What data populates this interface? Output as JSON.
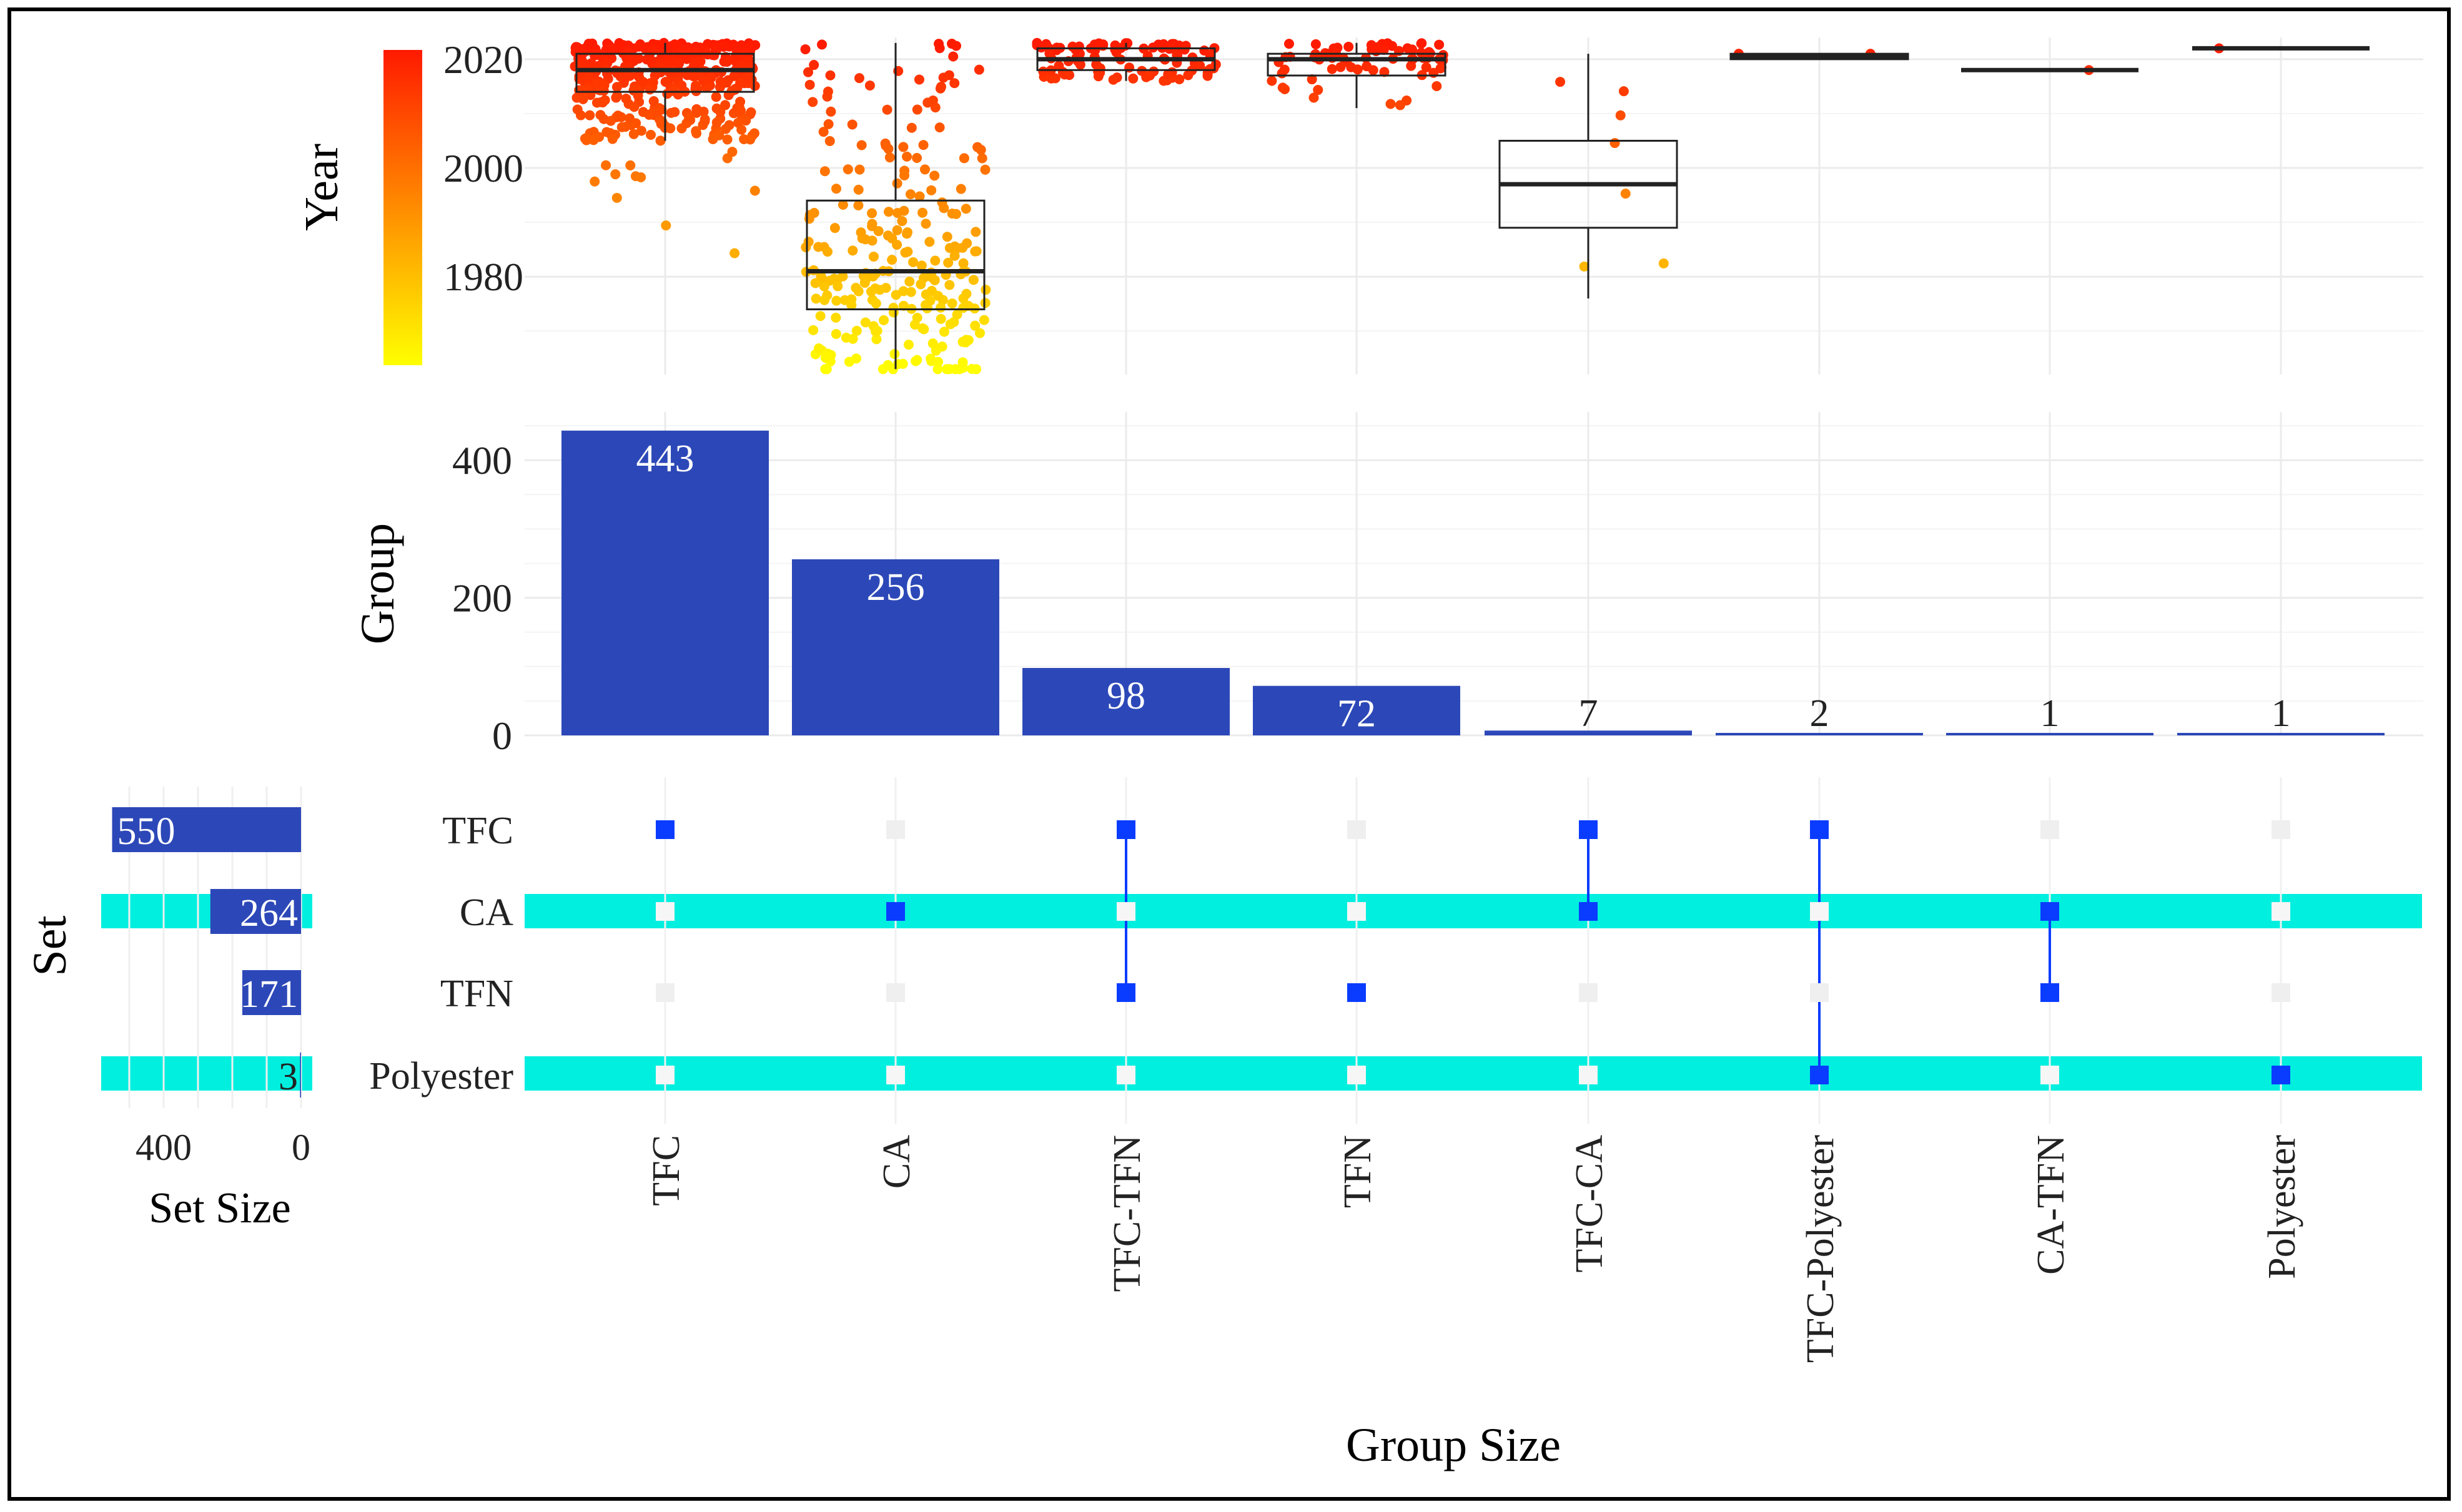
{
  "chart_data": {
    "type": "upset",
    "groups": [
      "TFC",
      "CA",
      "TFC-TFN",
      "TFN",
      "TFC-CA",
      "TFC-Polyester",
      "CA-TFN",
      "Polyester"
    ],
    "sets": [
      "TFC",
      "CA",
      "TFN",
      "Polyester"
    ],
    "membership": [
      [
        "TFC"
      ],
      [
        "CA"
      ],
      [
        "TFC",
        "TFN"
      ],
      [
        "TFN"
      ],
      [
        "TFC",
        "CA"
      ],
      [
        "TFC",
        "Polyester"
      ],
      [
        "CA",
        "TFN"
      ],
      [
        "Polyester"
      ]
    ],
    "group_sizes": [
      443,
      256,
      98,
      72,
      7,
      2,
      1,
      1
    ],
    "group_size_labels": [
      "443",
      "256",
      "98",
      "72",
      "7",
      "2",
      "1",
      "1"
    ],
    "set_sizes": [
      550,
      264,
      171,
      3
    ],
    "set_size_labels": [
      "550",
      "264",
      "171",
      "3"
    ],
    "highlighted_sets": [
      "CA",
      "Polyester"
    ],
    "year_boxplot": {
      "ylabel": "Year",
      "yticks": [
        1980,
        2000,
        2020
      ],
      "ylim": [
        1962,
        2024
      ],
      "color_scale": {
        "min": 1963,
        "max": 2023,
        "low_color": "#ffff00",
        "mid_color": "#ff8c00",
        "high_color": "#ff1a00"
      },
      "boxes": [
        {
          "group": "TFC",
          "min": 2005,
          "q1": 2014,
          "median": 2018,
          "q3": 2021,
          "max": 2023
        },
        {
          "group": "CA",
          "min": 1963,
          "q1": 1974,
          "median": 1981,
          "q3": 1994,
          "max": 2023
        },
        {
          "group": "TFC-TFN",
          "min": 2016,
          "q1": 2018,
          "median": 2020,
          "q3": 2022,
          "max": 2023
        },
        {
          "group": "TFN",
          "min": 2011,
          "q1": 2017,
          "median": 2020,
          "q3": 2021,
          "max": 2023
        },
        {
          "group": "TFC-CA",
          "min": 1976,
          "q1": 1989,
          "median": 1997,
          "q3": 2005,
          "max": 2021
        },
        {
          "group": "TFC-Polyester",
          "min": 2020,
          "q1": 2020,
          "median": 2020.5,
          "q3": 2021,
          "max": 2021
        },
        {
          "group": "CA-TFN",
          "min": 2018,
          "q1": 2018,
          "median": 2018,
          "q3": 2018,
          "max": 2018
        },
        {
          "group": "Polyester",
          "min": 2022,
          "q1": 2022,
          "median": 2022,
          "q3": 2022,
          "max": 2022
        }
      ]
    },
    "bar_chart": {
      "ylabel": "Group",
      "yticks": [
        0,
        200,
        400
      ],
      "ylim": [
        0,
        470
      ],
      "bar_color": "#2c48b8"
    },
    "set_size_chart": {
      "xlabel": "Set Size",
      "xticks": [
        400,
        0
      ],
      "xlim": [
        0,
        600
      ],
      "bar_color": "#2c48b8"
    },
    "matrix": {
      "ylabel": "Set",
      "dot_color": "#0a3cff",
      "empty_color": "#efefef",
      "highlight_color": "#00efdf"
    },
    "xlabel": "Group Size"
  },
  "labels": {
    "year_axis": "Year",
    "group_axis": "Group",
    "set_axis": "Set",
    "set_size_axis": "Set Size",
    "group_size_axis": "Group Size"
  }
}
